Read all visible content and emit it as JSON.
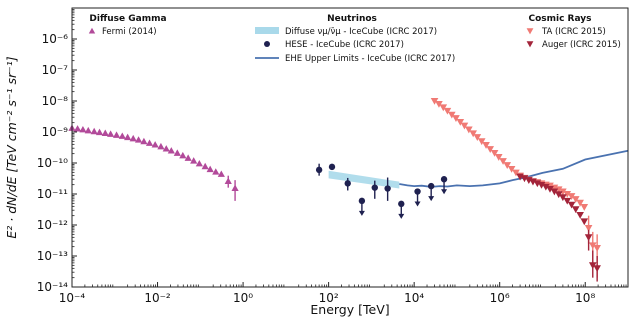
{
  "chart_data": {
    "type": "scatter",
    "xlabel": "Energy [TeV]",
    "ylabel": "E² · dN/dE [TeV cm⁻² s⁻¹ sr⁻¹]",
    "xscale": "log",
    "yscale": "log",
    "xlim": [
      0.0001,
      1000000000
    ],
    "ylim": [
      1e-14,
      1e-05
    ],
    "grid": false,
    "x_ticks": [
      {
        "value": 0.0001,
        "label": "10⁻⁴"
      },
      {
        "value": 0.01,
        "label": "10⁻²"
      },
      {
        "value": 1,
        "label": "10⁰"
      },
      {
        "value": 100,
        "label": "10²"
      },
      {
        "value": 10000,
        "label": "10⁴"
      },
      {
        "value": 1000000,
        "label": "10⁶"
      },
      {
        "value": 100000000,
        "label": "10⁸"
      }
    ],
    "y_ticks": [
      {
        "value": 1e-14,
        "label": "10⁻¹⁴"
      },
      {
        "value": 1e-13,
        "label": "10⁻¹³"
      },
      {
        "value": 1e-12,
        "label": "10⁻¹²"
      },
      {
        "value": 1e-11,
        "label": "10⁻¹¹"
      },
      {
        "value": 1e-10,
        "label": "10⁻¹⁰"
      },
      {
        "value": 1e-09,
        "label": "10⁻⁹"
      },
      {
        "value": 1e-08,
        "label": "10⁻⁸"
      },
      {
        "value": 1e-07,
        "label": "10⁻⁷"
      },
      {
        "value": 1e-06,
        "label": "10⁻⁶"
      }
    ],
    "legend_groups": [
      {
        "title": "Diffuse Gamma",
        "placement": "top-left",
        "entries": [
          "fermi"
        ]
      },
      {
        "title": "Neutrinos",
        "placement": "top-center",
        "entries": [
          "diffuse_band",
          "hese",
          "ehe"
        ]
      },
      {
        "title": "Cosmic Rays",
        "placement": "top-right",
        "entries": [
          "ta",
          "auger"
        ]
      }
    ],
    "series": {
      "fermi": {
        "name": "Fermi (2014)",
        "marker": "triangle-up",
        "color": "#b24a9a",
        "points": [
          [
            0.0001,
            1.35e-09
          ],
          [
            0.000135,
            1.28e-09
          ],
          [
            0.00018,
            1.2e-09
          ],
          [
            0.00024,
            1.12e-09
          ],
          [
            0.00033,
            1.05e-09
          ],
          [
            0.00044,
            9.8e-10
          ],
          [
            0.0006,
            9.2e-10
          ],
          [
            0.0008,
            8.6e-10
          ],
          [
            0.0011,
            8e-10
          ],
          [
            0.0015,
            7.4e-10
          ],
          [
            0.002,
            6.8e-10
          ],
          [
            0.0027,
            6.2e-10
          ],
          [
            0.0036,
            5.6e-10
          ],
          [
            0.0048,
            5e-10
          ],
          [
            0.0065,
            4.4e-10
          ],
          [
            0.0088,
            3.9e-10
          ],
          [
            0.012,
            3.4e-10
          ],
          [
            0.016,
            2.9e-10
          ],
          [
            0.021,
            2.5e-10
          ],
          [
            0.029,
            2.1e-10
          ],
          [
            0.039,
            1.75e-10
          ],
          [
            0.052,
            1.45e-10
          ],
          [
            0.07,
            1.18e-10
          ],
          [
            0.095,
            9.6e-11
          ],
          [
            0.13,
            7.8e-11
          ],
          [
            0.17,
            6.3e-11
          ],
          [
            0.23,
            5.2e-11
          ],
          [
            0.31,
            4.4e-11
          ]
        ],
        "errorbar_points": [
          {
            "x": 0.45,
            "y": 2.6e-11,
            "lo": 1.6e-11,
            "hi": 3.9e-11
          },
          {
            "x": 0.65,
            "y": 1.55e-11,
            "lo": 6e-12,
            "hi": 2.8e-11
          }
        ]
      },
      "diffuse_band": {
        "name": "Diffuse νμ/ν̄μ - IceCube (ICRC 2017)",
        "color": "#a9d9ea",
        "x": [
          100,
          4500
        ],
        "lower": [
          3.2e-11,
          1.5e-11
        ],
        "upper": [
          5.6e-11,
          2.5e-11
        ]
      },
      "hese": {
        "name": "HESE - IceCube (ICRC 2017)",
        "marker": "circle",
        "color": "#1f2150",
        "points": [
          {
            "x": 60,
            "y": 6e-11,
            "lo": 3.9e-11,
            "hi": 9.5e-11
          },
          {
            "x": 120,
            "y": 7.5e-11
          },
          {
            "x": 280,
            "y": 2.2e-11,
            "lo": 1.3e-11,
            "hi": 3.3e-11
          },
          {
            "x": 600,
            "y": 6e-12,
            "upper_limit": true
          },
          {
            "x": 1200,
            "y": 1.6e-11,
            "lo": 7e-12,
            "hi": 2.7e-11
          },
          {
            "x": 2400,
            "y": 1.5e-11,
            "lo": 6e-12,
            "hi": 3.4e-11
          },
          {
            "x": 5000,
            "y": 4.8e-12,
            "upper_limit": true
          },
          {
            "x": 12000,
            "y": 1.2e-11,
            "upper_limit": true
          },
          {
            "x": 25000,
            "y": 1.8e-11,
            "upper_limit": true
          },
          {
            "x": 50000,
            "y": 3e-11,
            "upper_limit": true
          }
        ]
      },
      "ehe": {
        "name": "EHE Upper Limits - IceCube (ICRC 2017)",
        "color": "#4a72b0",
        "x": [
          4500,
          7000,
          10000,
          15000,
          25000,
          40000,
          60000,
          100000,
          200000,
          400000,
          1000000,
          2000000,
          4000000,
          10000000,
          30000000,
          100000000,
          1000000000
        ],
        "y": [
          2.1e-11,
          1.9e-11,
          1.8e-11,
          1.85e-11,
          1.7e-11,
          1.8e-11,
          1.75e-11,
          1.9e-11,
          1.8e-11,
          1.9e-11,
          2.2e-11,
          2.8e-11,
          3.4e-11,
          4.8e-11,
          6.5e-11,
          1.3e-10,
          2.5e-10
        ]
      },
      "ta": {
        "name": "TA (ICRC 2015)",
        "marker": "triangle-down",
        "color": "#f07a74",
        "points": [
          [
            30000,
            1e-08
          ],
          [
            38000,
            8e-09
          ],
          [
            48000,
            6.2e-09
          ],
          [
            60000,
            4.8e-09
          ],
          [
            76000,
            3.6e-09
          ],
          [
            95000,
            2.8e-09
          ],
          [
            120000,
            2.1e-09
          ],
          [
            150000,
            1.6e-09
          ],
          [
            190000,
            1.2e-09
          ],
          [
            240000,
            9e-10
          ],
          [
            300000,
            6.8e-10
          ],
          [
            380000,
            5e-10
          ],
          [
            480000,
            3.8e-10
          ],
          [
            600000,
            2.8e-10
          ],
          [
            760000,
            2.1e-10
          ],
          [
            950000,
            1.55e-10
          ],
          [
            1200000,
            1.15e-10
          ],
          [
            1500000,
            8.5e-11
          ],
          [
            1900000,
            6.4e-11
          ],
          [
            2400000,
            4.9e-11
          ],
          [
            3000000,
            3.9e-11
          ],
          [
            3800000,
            3.3e-11
          ],
          [
            4800000,
            2.9e-11
          ],
          [
            6000000,
            2.6e-11
          ],
          [
            7600000,
            2.4e-11
          ],
          [
            9500000,
            2.2e-11
          ],
          [
            12000000,
            2e-11
          ],
          [
            15000000,
            1.85e-11
          ],
          [
            19000000,
            1.6e-11
          ],
          [
            24000000,
            1.4e-11
          ],
          [
            30000000,
            1.2e-11
          ],
          [
            38000000,
            1e-11
          ],
          [
            48000000,
            8.5e-12
          ],
          [
            60000000,
            6.8e-12
          ],
          [
            76000000,
            5.2e-12
          ],
          [
            95000000,
            3.8e-12
          ]
        ],
        "errorbar_points": [
          {
            "x": 120000000,
            "y": 8e-13,
            "lo": 2.5e-13,
            "hi": 2e-12
          },
          {
            "x": 150000000,
            "y": 2.2e-13,
            "lo": 4e-14,
            "hi": 6e-13
          },
          {
            "x": 190000000,
            "y": 1.8e-13,
            "lo": 2e-14,
            "hi": 5e-13
          }
        ]
      },
      "auger": {
        "name": "Auger (ICRC 2015)",
        "marker": "triangle-down",
        "color": "#a3243a",
        "points": [
          [
            3000000,
            3.6e-11
          ],
          [
            3800000,
            3.2e-11
          ],
          [
            4800000,
            2.8e-11
          ],
          [
            6000000,
            2.5e-11
          ],
          [
            7600000,
            2.2e-11
          ],
          [
            9500000,
            1.95e-11
          ],
          [
            12000000,
            1.7e-11
          ],
          [
            15000000,
            1.45e-11
          ],
          [
            19000000,
            1.2e-11
          ],
          [
            24000000,
            9.8e-12
          ],
          [
            30000000,
            7.8e-12
          ],
          [
            38000000,
            6e-12
          ],
          [
            48000000,
            4.5e-12
          ],
          [
            60000000,
            3.2e-12
          ],
          [
            76000000,
            2.1e-12
          ],
          [
            95000000,
            1.3e-12
          ]
        ],
        "errorbar_points": [
          {
            "x": 120000000,
            "y": 4e-13,
            "lo": 1.5e-13,
            "hi": 7e-13
          },
          {
            "x": 150000000,
            "y": 5e-14,
            "lo": 2e-14,
            "hi": 1.5e-13
          },
          {
            "x": 190000000,
            "y": 4e-14,
            "lo": 1.5e-14,
            "hi": 1e-13
          }
        ]
      }
    }
  }
}
